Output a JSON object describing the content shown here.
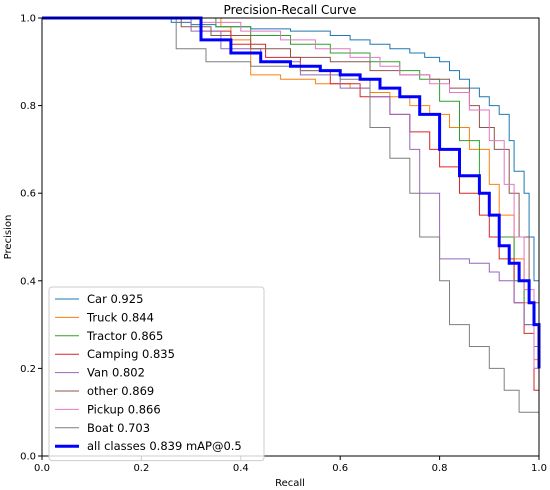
{
  "chart_data": {
    "type": "line",
    "title": "Precision-Recall Curve",
    "xlabel": "Recall",
    "ylabel": "Precision",
    "xlim": [
      0,
      1
    ],
    "ylim": [
      0,
      1
    ],
    "xticks": [
      "0.0",
      "0.2",
      "0.4",
      "0.6",
      "0.8",
      "1.0"
    ],
    "yticks": [
      "0.0",
      "0.2",
      "0.4",
      "0.6",
      "0.8",
      "1.0"
    ],
    "grid": false,
    "legend_position": "lower-left",
    "series": [
      {
        "name": "Car 0.925",
        "color": "#1f77b4",
        "width": 1,
        "x": [
          0,
          0.23,
          0.26,
          0.3,
          0.35,
          0.42,
          0.5,
          0.58,
          0.62,
          0.66,
          0.7,
          0.74,
          0.77,
          0.8,
          0.82,
          0.84,
          0.86,
          0.88,
          0.9,
          0.92,
          0.94,
          0.95,
          0.97,
          0.98,
          0.99,
          1.0
        ],
        "y": [
          1,
          1,
          0.99,
          0.985,
          0.98,
          0.975,
          0.97,
          0.96,
          0.95,
          0.94,
          0.93,
          0.92,
          0.91,
          0.9,
          0.88,
          0.86,
          0.84,
          0.82,
          0.8,
          0.78,
          0.72,
          0.65,
          0.6,
          0.5,
          0.4,
          0.3
        ]
      },
      {
        "name": "Truck 0.844",
        "color": "#ff7f0e",
        "width": 1,
        "x": [
          0,
          0.33,
          0.36,
          0.38,
          0.42,
          0.48,
          0.55,
          0.62,
          0.66,
          0.7,
          0.74,
          0.78,
          0.82,
          0.86,
          0.9,
          0.92,
          0.95,
          0.97,
          0.99,
          1.0
        ],
        "y": [
          1,
          1,
          0.98,
          0.95,
          0.87,
          0.86,
          0.85,
          0.84,
          0.83,
          0.82,
          0.8,
          0.78,
          0.75,
          0.7,
          0.62,
          0.55,
          0.45,
          0.35,
          0.22,
          0.1
        ]
      },
      {
        "name": "Tractor 0.865",
        "color": "#2ca02c",
        "width": 1,
        "x": [
          0,
          0.28,
          0.35,
          0.42,
          0.5,
          0.58,
          0.66,
          0.72,
          0.76,
          0.8,
          0.84,
          0.88,
          0.9,
          0.92,
          0.95,
          0.97,
          0.99,
          1.0
        ],
        "y": [
          1,
          1,
          0.98,
          0.96,
          0.94,
          0.92,
          0.9,
          0.88,
          0.86,
          0.81,
          0.72,
          0.6,
          0.55,
          0.5,
          0.4,
          0.3,
          0.2,
          0.15
        ]
      },
      {
        "name": "Camping 0.835",
        "color": "#d62728",
        "width": 1,
        "x": [
          0,
          0.27,
          0.32,
          0.38,
          0.45,
          0.52,
          0.58,
          0.64,
          0.7,
          0.74,
          0.78,
          0.8,
          0.84,
          0.88,
          0.9,
          0.92,
          0.95,
          0.97,
          0.99,
          1.0
        ],
        "y": [
          1,
          1,
          0.97,
          0.94,
          0.91,
          0.88,
          0.85,
          0.82,
          0.78,
          0.74,
          0.7,
          0.66,
          0.6,
          0.55,
          0.5,
          0.45,
          0.35,
          0.28,
          0.15,
          0.1
        ]
      },
      {
        "name": "Van 0.802",
        "color": "#9467bd",
        "width": 1,
        "x": [
          0,
          0.25,
          0.3,
          0.36,
          0.44,
          0.52,
          0.6,
          0.66,
          0.7,
          0.74,
          0.76,
          0.8,
          0.86,
          0.9,
          0.92,
          0.95,
          0.97,
          0.99,
          1.0
        ],
        "y": [
          1,
          1,
          0.97,
          0.93,
          0.9,
          0.87,
          0.84,
          0.82,
          0.78,
          0.7,
          0.6,
          0.45,
          0.44,
          0.42,
          0.4,
          0.35,
          0.3,
          0.25,
          0.2
        ]
      },
      {
        "name": "other 0.869",
        "color": "#8c564b",
        "width": 1,
        "x": [
          0,
          0.22,
          0.28,
          0.34,
          0.42,
          0.5,
          0.58,
          0.66,
          0.72,
          0.78,
          0.82,
          0.86,
          0.88,
          0.91,
          0.94,
          0.96,
          0.98,
          1.0
        ],
        "y": [
          1,
          1,
          0.98,
          0.96,
          0.93,
          0.91,
          0.9,
          0.88,
          0.87,
          0.86,
          0.84,
          0.8,
          0.75,
          0.7,
          0.6,
          0.5,
          0.35,
          0.2
        ]
      },
      {
        "name": "Pickup 0.866",
        "color": "#e377c2",
        "width": 1,
        "x": [
          0,
          0.27,
          0.32,
          0.4,
          0.48,
          0.55,
          0.62,
          0.68,
          0.72,
          0.78,
          0.82,
          0.86,
          0.9,
          0.93,
          0.95,
          0.97,
          0.99,
          1.0
        ],
        "y": [
          1,
          1,
          0.99,
          0.97,
          0.95,
          0.93,
          0.91,
          0.89,
          0.87,
          0.85,
          0.83,
          0.79,
          0.72,
          0.62,
          0.5,
          0.38,
          0.2,
          0.12
        ]
      },
      {
        "name": "Boat 0.703",
        "color": "#7f7f7f",
        "width": 1,
        "x": [
          0,
          0.22,
          0.27,
          0.33,
          0.42,
          0.52,
          0.6,
          0.66,
          0.7,
          0.74,
          0.76,
          0.8,
          0.82,
          0.86,
          0.9,
          0.93,
          0.96,
          1.0
        ],
        "y": [
          1,
          1,
          0.93,
          0.9,
          0.89,
          0.88,
          0.86,
          0.75,
          0.68,
          0.6,
          0.5,
          0.4,
          0.3,
          0.25,
          0.2,
          0.15,
          0.1,
          0.05
        ]
      },
      {
        "name": "all classes 0.839 mAP@0.5",
        "color": "#0000ff",
        "width": 3,
        "x": [
          0,
          0.28,
          0.32,
          0.38,
          0.44,
          0.5,
          0.56,
          0.6,
          0.64,
          0.68,
          0.72,
          0.76,
          0.8,
          0.84,
          0.88,
          0.9,
          0.92,
          0.94,
          0.96,
          0.98,
          0.99,
          1.0
        ],
        "y": [
          1,
          1,
          0.95,
          0.92,
          0.9,
          0.89,
          0.88,
          0.87,
          0.86,
          0.84,
          0.82,
          0.78,
          0.7,
          0.64,
          0.6,
          0.55,
          0.48,
          0.44,
          0.4,
          0.35,
          0.3,
          0.2
        ]
      }
    ]
  }
}
